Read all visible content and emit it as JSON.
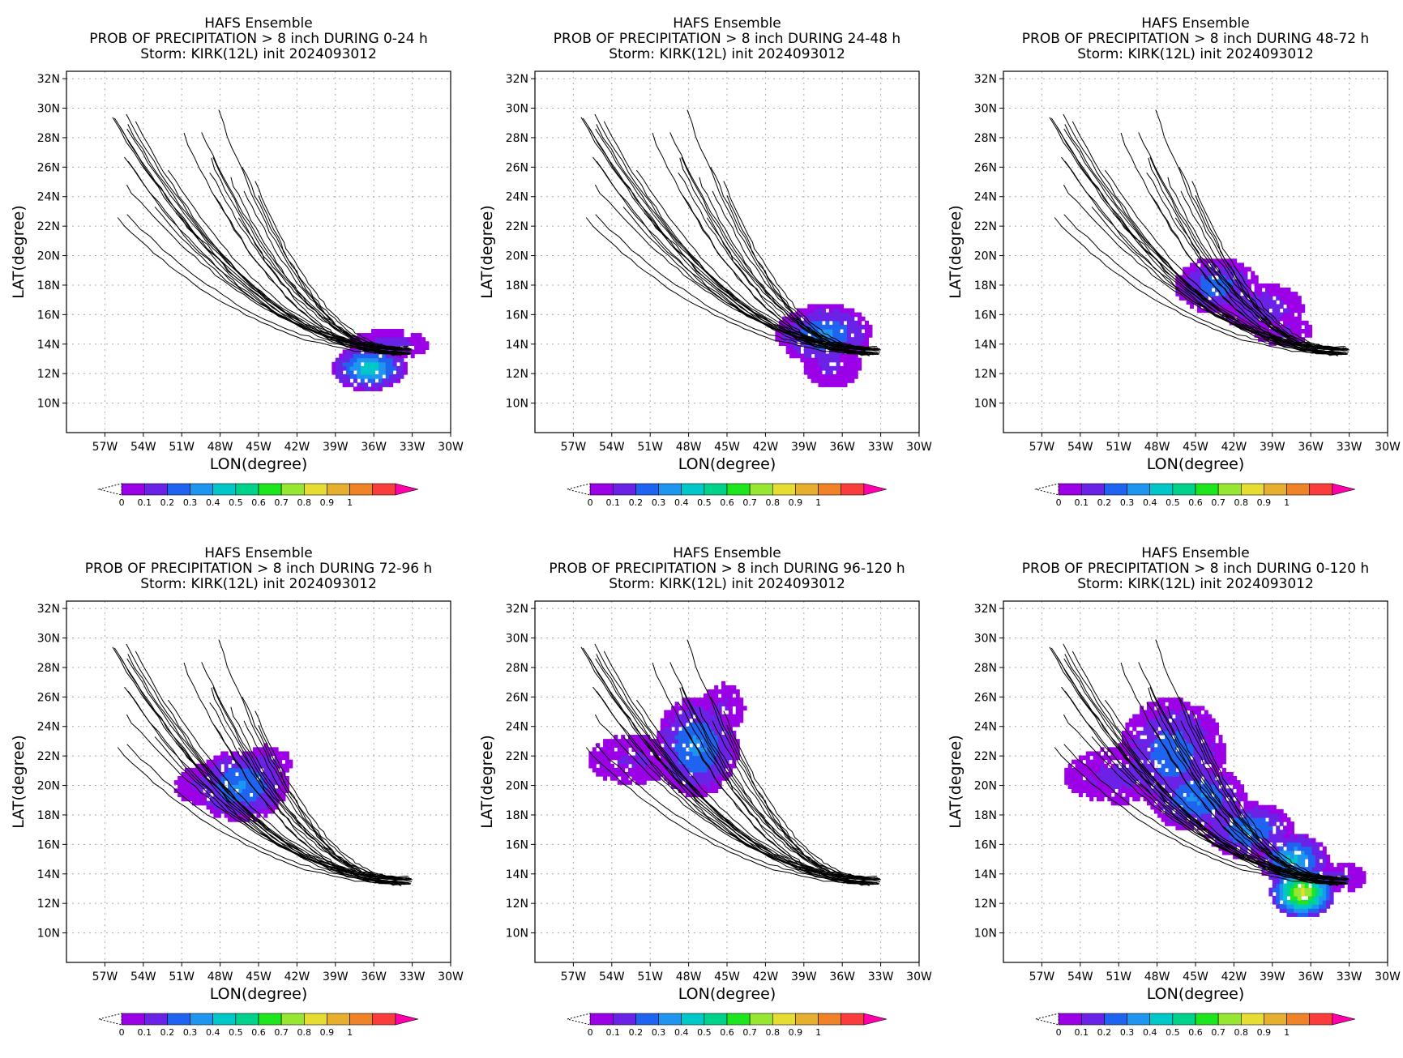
{
  "figure": {
    "model": "HAFS Ensemble",
    "storm_line": "Storm: KIRK(12L) init 2024093012"
  },
  "colorbar": {
    "colors": [
      "#ffffff",
      "#9b00e6",
      "#6a22e6",
      "#1e64f0",
      "#1e96f0",
      "#00c8c8",
      "#00d28c",
      "#1ee61e",
      "#96e632",
      "#e6dc32",
      "#e6af2d",
      "#f08228",
      "#fa3c3c",
      "#ff00aa"
    ],
    "tick_labels": [
      "0",
      "0.1",
      "0.2",
      "0.3",
      "0.4",
      "0.5",
      "0.6",
      "0.7",
      "0.8",
      "0.9",
      "1"
    ]
  },
  "chart_data": [
    {
      "type": "heatmap",
      "title": "HAFS Ensemble",
      "subtitle": "PROB OF PRECIPITATION > 8 inch DURING  0-24 h",
      "storm": "Storm: KIRK(12L) init 2024093012",
      "xlabel": "LON(degree)",
      "ylabel": "LAT(degree)",
      "xlim": [
        -60,
        -30
      ],
      "ylim": [
        8,
        32.5
      ],
      "xticks": [
        "57W",
        "54W",
        "51W",
        "48W",
        "45W",
        "42W",
        "39W",
        "36W",
        "33W",
        "30W"
      ],
      "yticks": [
        "10N",
        "12N",
        "14N",
        "16N",
        "18N",
        "20N",
        "22N",
        "24N",
        "26N",
        "28N",
        "30N",
        "32N"
      ],
      "grid": true,
      "precip_blobs": [
        {
          "lon": -36.5,
          "lat": 12.2,
          "rlon": 2.3,
          "rlat": 1.2,
          "peak": 0.45
        },
        {
          "lon": -35.0,
          "lat": 13.8,
          "rlon": 2.5,
          "rlat": 0.8,
          "peak": 0.15
        }
      ]
    },
    {
      "type": "heatmap",
      "title": "HAFS Ensemble",
      "subtitle": "PROB OF PRECIPITATION > 8 inch DURING 24-48 h",
      "storm": "Storm: KIRK(12L) init 2024093012",
      "xlabel": "LON(degree)",
      "ylabel": "LAT(degree)",
      "xlim": [
        -60,
        -30
      ],
      "ylim": [
        8,
        32.5
      ],
      "xticks": [
        "57W",
        "54W",
        "51W",
        "48W",
        "45W",
        "42W",
        "39W",
        "36W",
        "33W",
        "30W"
      ],
      "yticks": [
        "10N",
        "12N",
        "14N",
        "16N",
        "18N",
        "20N",
        "22N",
        "24N",
        "26N",
        "28N",
        "30N",
        "32N"
      ],
      "grid": true,
      "precip_blobs": [
        {
          "lon": -37.5,
          "lat": 14.5,
          "rlon": 3.0,
          "rlat": 1.6,
          "peak": 0.3
        },
        {
          "lon": -37.0,
          "lat": 12.5,
          "rlon": 1.8,
          "rlat": 1.3,
          "peak": 0.12
        }
      ]
    },
    {
      "type": "heatmap",
      "title": "HAFS Ensemble",
      "subtitle": "PROB OF PRECIPITATION > 8 inch DURING 48-72 h",
      "storm": "Storm: KIRK(12L) init 2024093012",
      "xlabel": "LON(degree)",
      "ylabel": "LAT(degree)",
      "xlim": [
        -60,
        -30
      ],
      "ylim": [
        8,
        32.5
      ],
      "xticks": [
        "57W",
        "54W",
        "51W",
        "48W",
        "45W",
        "42W",
        "39W",
        "36W",
        "33W",
        "30W"
      ],
      "yticks": [
        "10N",
        "12N",
        "14N",
        "16N",
        "18N",
        "20N",
        "22N",
        "24N",
        "26N",
        "28N",
        "30N",
        "32N"
      ],
      "grid": true,
      "precip_blobs": [
        {
          "lon": -43.5,
          "lat": 17.8,
          "rlon": 2.6,
          "rlat": 1.5,
          "peak": 0.25
        },
        {
          "lon": -40.0,
          "lat": 16.3,
          "rlon": 2.6,
          "rlat": 1.3,
          "peak": 0.18
        },
        {
          "lon": -38.2,
          "lat": 14.7,
          "rlon": 1.8,
          "rlat": 0.8,
          "peak": 0.1
        }
      ]
    },
    {
      "type": "heatmap",
      "title": "HAFS Ensemble",
      "subtitle": "PROB OF PRECIPITATION > 8 inch DURING 72-96 h",
      "storm": "Storm: KIRK(12L) init 2024093012",
      "xlabel": "LON(degree)",
      "ylabel": "LAT(degree)",
      "xlim": [
        -60,
        -30
      ],
      "ylim": [
        8,
        32.5
      ],
      "xticks": [
        "57W",
        "54W",
        "51W",
        "48W",
        "45W",
        "42W",
        "39W",
        "36W",
        "33W",
        "30W"
      ],
      "yticks": [
        "10N",
        "12N",
        "14N",
        "16N",
        "18N",
        "20N",
        "22N",
        "24N",
        "26N",
        "28N",
        "30N",
        "32N"
      ],
      "grid": true,
      "precip_blobs": [
        {
          "lon": -46.5,
          "lat": 19.8,
          "rlon": 2.9,
          "rlat": 1.9,
          "peak": 0.3
        },
        {
          "lon": -49.5,
          "lat": 19.8,
          "rlon": 1.8,
          "rlat": 1.1,
          "peak": 0.1
        },
        {
          "lon": -44.5,
          "lat": 21.3,
          "rlon": 1.5,
          "rlat": 1.0,
          "peak": 0.12
        }
      ]
    },
    {
      "type": "heatmap",
      "title": "HAFS Ensemble",
      "subtitle": "PROB OF PRECIPITATION > 8 inch DURING 96-120 h",
      "storm": "Storm: KIRK(12L) init 2024093012",
      "xlabel": "LON(degree)",
      "ylabel": "LAT(degree)",
      "xlim": [
        -60,
        -30
      ],
      "ylim": [
        8,
        32.5
      ],
      "xticks": [
        "57W",
        "54W",
        "51W",
        "48W",
        "45W",
        "42W",
        "39W",
        "36W",
        "33W",
        "30W"
      ],
      "yticks": [
        "10N",
        "12N",
        "14N",
        "16N",
        "18N",
        "20N",
        "22N",
        "24N",
        "26N",
        "28N",
        "30N",
        "32N"
      ],
      "grid": true,
      "precip_blobs": [
        {
          "lon": -47.5,
          "lat": 22.5,
          "rlon": 2.6,
          "rlat": 2.7,
          "peak": 0.3
        },
        {
          "lon": -52.5,
          "lat": 21.6,
          "rlon": 2.8,
          "rlat": 1.3,
          "peak": 0.1
        },
        {
          "lon": -45.5,
          "lat": 25.0,
          "rlon": 1.4,
          "rlat": 1.4,
          "peak": 0.1
        }
      ]
    },
    {
      "type": "heatmap",
      "title": "HAFS Ensemble",
      "subtitle": "PROB OF PRECIPITATION > 8 inch DURING 0-120 h",
      "storm": "Storm: KIRK(12L) init 2024093012",
      "xlabel": "LON(degree)",
      "ylabel": "LAT(degree)",
      "xlim": [
        -60,
        -30
      ],
      "ylim": [
        8,
        32.5
      ],
      "xticks": [
        "57W",
        "54W",
        "51W",
        "48W",
        "45W",
        "42W",
        "39W",
        "36W",
        "33W",
        "30W"
      ],
      "yticks": [
        "10N",
        "12N",
        "14N",
        "16N",
        "18N",
        "20N",
        "22N",
        "24N",
        "26N",
        "28N",
        "30N",
        "32N"
      ],
      "grid": true,
      "precip_blobs": [
        {
          "lon": -47.0,
          "lat": 22.0,
          "rlon": 3.3,
          "rlat": 3.0,
          "peak": 0.25
        },
        {
          "lon": -45.0,
          "lat": 19.0,
          "rlon": 3.0,
          "rlat": 1.8,
          "peak": 0.3
        },
        {
          "lon": -51.0,
          "lat": 20.5,
          "rlon": 3.5,
          "rlat": 1.5,
          "peak": 0.12
        },
        {
          "lon": -41.0,
          "lat": 16.8,
          "rlon": 2.8,
          "rlat": 1.5,
          "peak": 0.3
        },
        {
          "lon": -37.5,
          "lat": 14.8,
          "rlon": 2.2,
          "rlat": 1.4,
          "peak": 0.4
        },
        {
          "lon": -36.8,
          "lat": 12.6,
          "rlon": 2.0,
          "rlat": 1.4,
          "peak": 0.8
        },
        {
          "lon": -34.0,
          "lat": 13.6,
          "rlon": 1.8,
          "rlat": 0.8,
          "peak": 0.12
        }
      ]
    }
  ]
}
